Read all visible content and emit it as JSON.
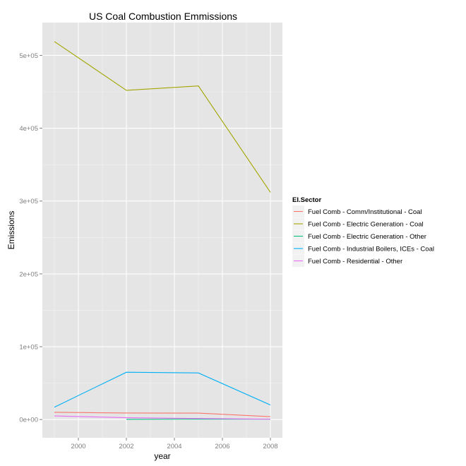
{
  "chart_data": {
    "type": "line",
    "title": "US Coal Combustion Emmissions",
    "xlabel": "year",
    "ylabel": "Emissions",
    "xlim": [
      1998.5,
      2008.5
    ],
    "ylim": [
      -25000,
      545000
    ],
    "x_ticks": [
      2000,
      2002,
      2004,
      2006,
      2008
    ],
    "x_tick_labels": [
      "2000",
      "2002",
      "2004",
      "2006",
      "2008"
    ],
    "y_ticks": [
      0,
      100000,
      200000,
      300000,
      400000,
      500000
    ],
    "y_tick_labels": [
      "0e+00",
      "1e+05",
      "2e+05",
      "3e+05",
      "4e+05",
      "5e+05"
    ],
    "grid": true,
    "legend": {
      "title": "EI.Sector",
      "placement": "right"
    },
    "series": [
      {
        "name": "Fuel Comb - Comm/Institutional - Coal",
        "color": "#F8766D",
        "points": [
          [
            1999,
            10000
          ],
          [
            2002,
            9000
          ],
          [
            2005,
            8800
          ],
          [
            2008,
            4000
          ]
        ]
      },
      {
        "name": "Fuel Comb - Electric Generation - Coal",
        "color": "#A3A500",
        "points": [
          [
            1999,
            519000
          ],
          [
            2002,
            452000
          ],
          [
            2005,
            458000
          ],
          [
            2008,
            312000
          ]
        ]
      },
      {
        "name": "Fuel Comb - Electric Generation - Other",
        "color": "#00BF7D",
        "points": [
          [
            2002,
            300
          ],
          [
            2005,
            500
          ],
          [
            2008,
            500
          ]
        ]
      },
      {
        "name": "Fuel Comb - Industrial Boilers, ICEs - Coal",
        "color": "#00B0F6",
        "points": [
          [
            1999,
            17000
          ],
          [
            2002,
            65000
          ],
          [
            2005,
            64000
          ],
          [
            2008,
            20000
          ]
        ]
      },
      {
        "name": "Fuel Comb - Residential - Other",
        "color": "#E76BF3",
        "points": [
          [
            1999,
            5000
          ],
          [
            2002,
            2500
          ],
          [
            2005,
            1500
          ],
          [
            2008,
            500
          ]
        ]
      }
    ]
  }
}
